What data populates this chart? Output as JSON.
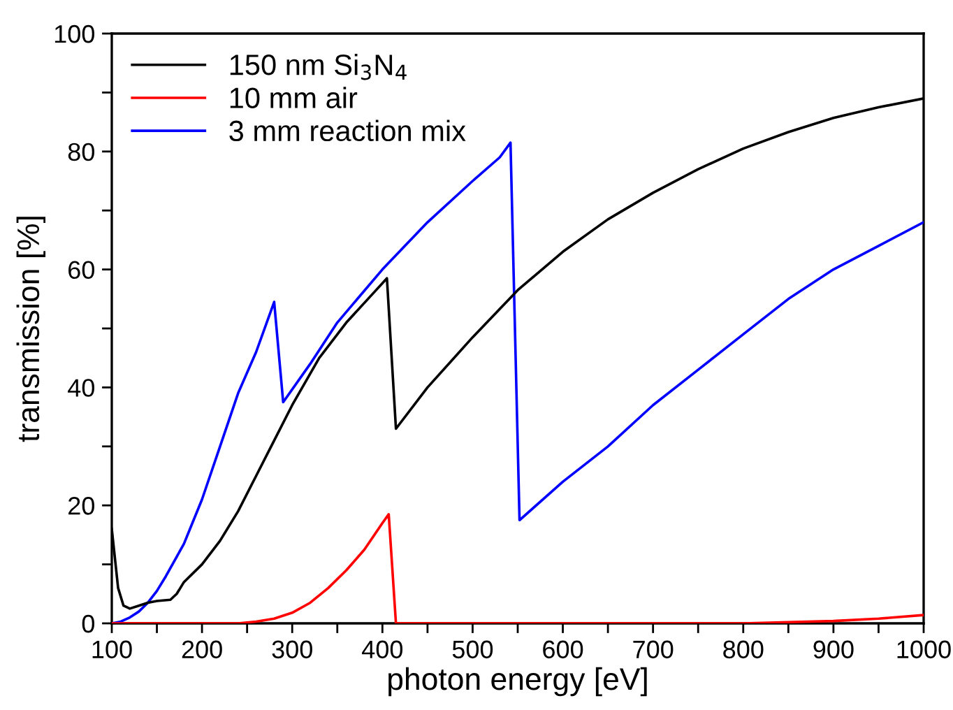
{
  "chart_data": {
    "type": "line",
    "xlabel": "photon energy [eV]",
    "ylabel": "transmission [%]",
    "xlim": [
      100,
      1000
    ],
    "ylim": [
      0,
      100
    ],
    "xticks": [
      100,
      {
        "value": 150,
        "label": null
      },
      200,
      {
        "value": 250,
        "label": null
      },
      300,
      {
        "value": 350,
        "label": null
      },
      400,
      {
        "value": 450,
        "label": null
      },
      500,
      {
        "value": 550,
        "label": null
      },
      600,
      {
        "value": 650,
        "label": null
      },
      700,
      {
        "value": 750,
        "label": null
      },
      800,
      {
        "value": 850,
        "label": null
      },
      900,
      {
        "value": 950,
        "label": null
      },
      1000
    ],
    "yticks": [
      0,
      {
        "value": 10,
        "label": null
      },
      20,
      {
        "value": 30,
        "label": null
      },
      40,
      {
        "value": 50,
        "label": null
      },
      60,
      {
        "value": 70,
        "label": null
      },
      80,
      {
        "value": 90,
        "label": null
      },
      100
    ],
    "grid": false,
    "legend": "top left",
    "marker": "none",
    "line_style": "solid",
    "series": [
      {
        "name": "150 nm Si$_{3}$N$_{4}$",
        "color": "#000000",
        "x": [
          100,
          107,
          113,
          120,
          130,
          140,
          150,
          165,
          172,
          180,
          200,
          220,
          240,
          260,
          280,
          300,
          330,
          360,
          390,
          405,
          415,
          450,
          500,
          550,
          600,
          650,
          700,
          750,
          800,
          850,
          900,
          950,
          1000
        ],
        "values": [
          16,
          6,
          3,
          2.5,
          3,
          3.5,
          3.8,
          4,
          5,
          7,
          10,
          14,
          19,
          25,
          31,
          37,
          45,
          51,
          56,
          58.5,
          33,
          40,
          48.5,
          56.5,
          63,
          68.5,
          73,
          77,
          80.5,
          83.3,
          85.7,
          87.5,
          89
        ]
      },
      {
        "name": "10 mm air",
        "color": "#ff0000",
        "x": [
          100,
          200,
          240,
          260,
          280,
          300,
          320,
          340,
          360,
          380,
          400,
          407,
          415,
          800,
          850,
          900,
          950,
          1000
        ],
        "values": [
          0,
          0,
          0,
          0.3,
          0.8,
          1.8,
          3.5,
          6,
          9,
          12.5,
          17,
          18.5,
          0,
          0,
          0.2,
          0.4,
          0.8,
          1.4
        ]
      },
      {
        "name": "3 mm reaction mix",
        "color": "#0000ff",
        "x": [
          100,
          110,
          120,
          130,
          140,
          150,
          160,
          180,
          200,
          220,
          240,
          260,
          280,
          290,
          320,
          350,
          400,
          450,
          500,
          530,
          542,
          552,
          600,
          650,
          700,
          750,
          800,
          850,
          900,
          950,
          1000
        ],
        "values": [
          0,
          0.3,
          1,
          2,
          3.5,
          5.5,
          8,
          13.5,
          21,
          30,
          39,
          46,
          54.5,
          37.5,
          44,
          51,
          60,
          68,
          75,
          79,
          81.5,
          17.5,
          24,
          30,
          37,
          43,
          49,
          55,
          60,
          64,
          68
        ]
      }
    ]
  }
}
